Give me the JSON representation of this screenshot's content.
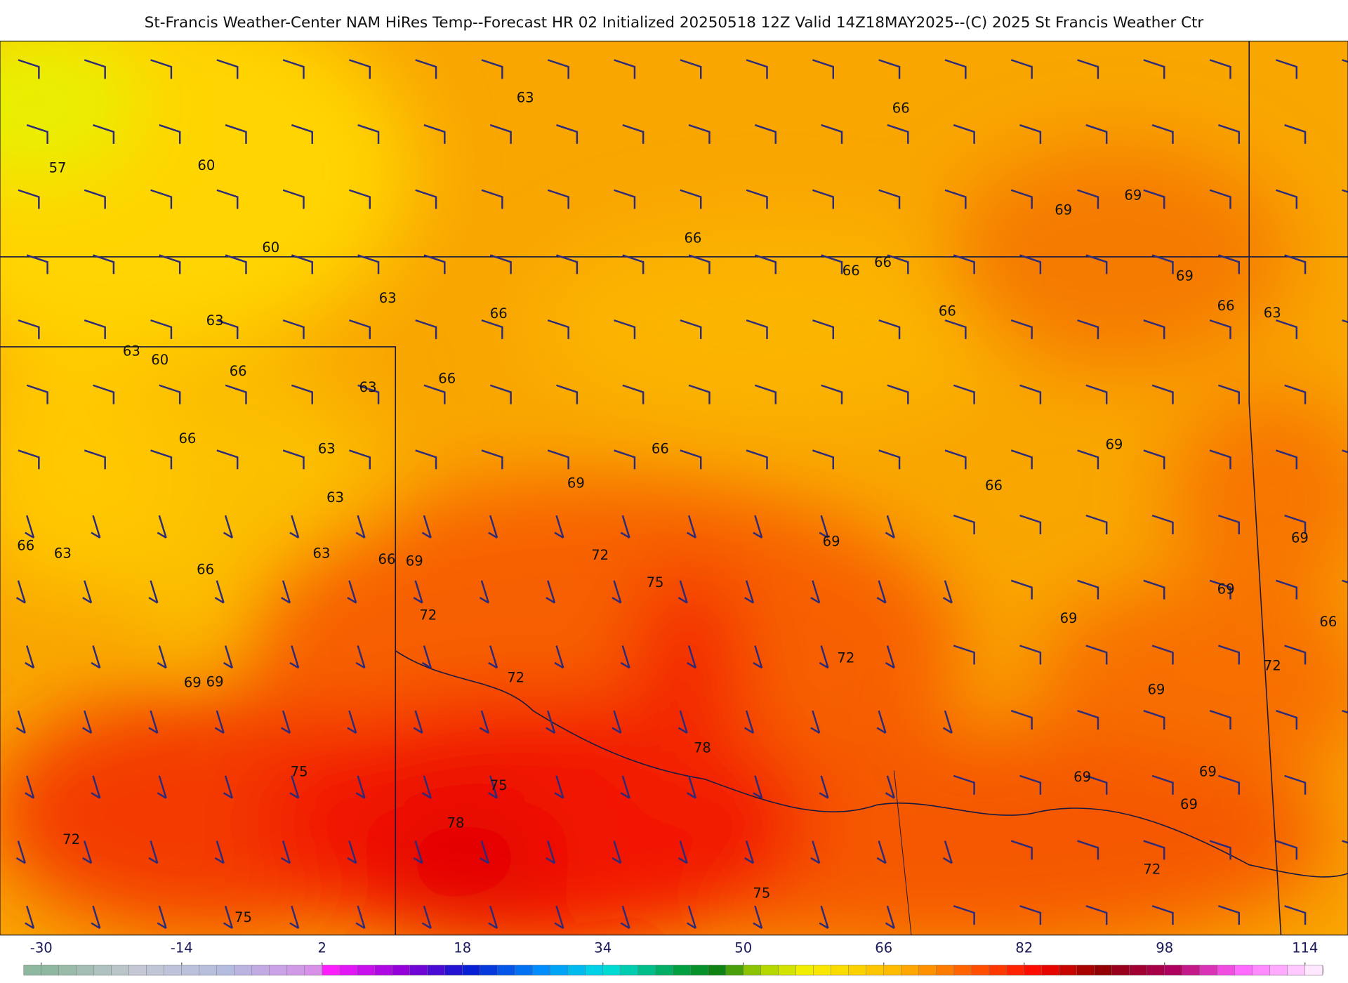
{
  "header": {
    "title": "St-Francis Weather-Center NAM HiRes Temp--Forecast HR 02 Initialized 20250518 12Z Valid 14Z18MAY2025--(C) 2025 St Francis Weather Ctr"
  },
  "map": {
    "contour_labels": [
      63,
      66,
      57,
      60,
      69,
      69,
      66,
      60,
      66,
      66,
      69,
      63,
      66,
      66,
      66,
      63,
      63,
      63,
      60,
      66,
      63,
      66,
      66,
      63,
      66,
      69,
      69,
      66,
      63,
      66,
      63,
      69,
      69,
      63,
      72,
      66,
      69,
      66,
      75,
      69,
      69,
      72,
      66,
      72,
      72,
      72,
      69,
      69,
      69,
      78,
      75,
      69,
      69,
      75,
      69,
      78,
      72,
      72,
      75,
      75
    ]
  },
  "colorbar": {
    "ticks": [
      -30,
      -14,
      2,
      18,
      34,
      50,
      66,
      82,
      98,
      114
    ]
  }
}
